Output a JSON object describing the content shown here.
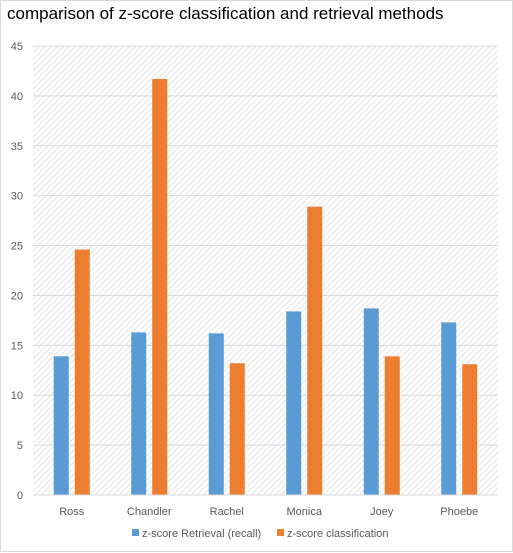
{
  "chart_data": {
    "type": "bar",
    "title": "comparison of z-score classification and retrieval methods",
    "xlabel": "",
    "ylabel": "",
    "categories": [
      "Ross",
      "Chandler",
      "Rachel",
      "Monica",
      "Joey",
      "Phoebe"
    ],
    "series": [
      {
        "name": "z-score Retrieval (recall)",
        "color": "#5b9bd5",
        "values": [
          13.9,
          16.3,
          16.2,
          18.4,
          18.7,
          17.3
        ]
      },
      {
        "name": "z-score classification",
        "color": "#ed7d31",
        "values": [
          24.6,
          41.7,
          13.2,
          28.9,
          13.9,
          13.1
        ]
      }
    ],
    "ylim": [
      0,
      45
    ],
    "yticks": [
      0,
      5,
      10,
      15,
      20,
      25,
      30,
      35,
      40,
      45
    ],
    "grid": true,
    "legend": "bottom"
  }
}
